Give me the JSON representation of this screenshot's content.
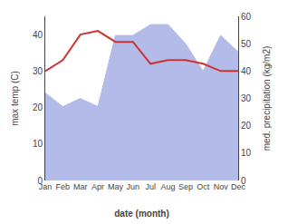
{
  "chart_data": {
    "type": "line",
    "categories": [
      "Jan",
      "Feb",
      "Mar",
      "Apr",
      "May",
      "Jun",
      "Jul",
      "Aug",
      "Sep",
      "Oct",
      "Nov",
      "Dec"
    ],
    "xlabel": "date (month)",
    "ylabel": "max temp (C)",
    "y2label": "med. precipitation (kg/m2)",
    "series": [
      {
        "type": "area",
        "axis": "y2",
        "color": "#b3bce8",
        "values": [
          32,
          27,
          30,
          27,
          53,
          53,
          57,
          57,
          50,
          40,
          53,
          47
        ]
      },
      {
        "type": "line",
        "color": "#cc3333",
        "values": [
          30,
          33,
          40,
          41,
          38,
          38,
          32,
          33,
          33,
          32,
          30,
          30
        ]
      }
    ],
    "ylim": [
      0,
      45
    ],
    "yticks": [
      0,
      10,
      20,
      30,
      40
    ],
    "y2lim": [
      0,
      60
    ],
    "y2ticks": [
      0,
      10,
      20,
      30,
      40,
      50,
      60
    ],
    "grid": false
  }
}
